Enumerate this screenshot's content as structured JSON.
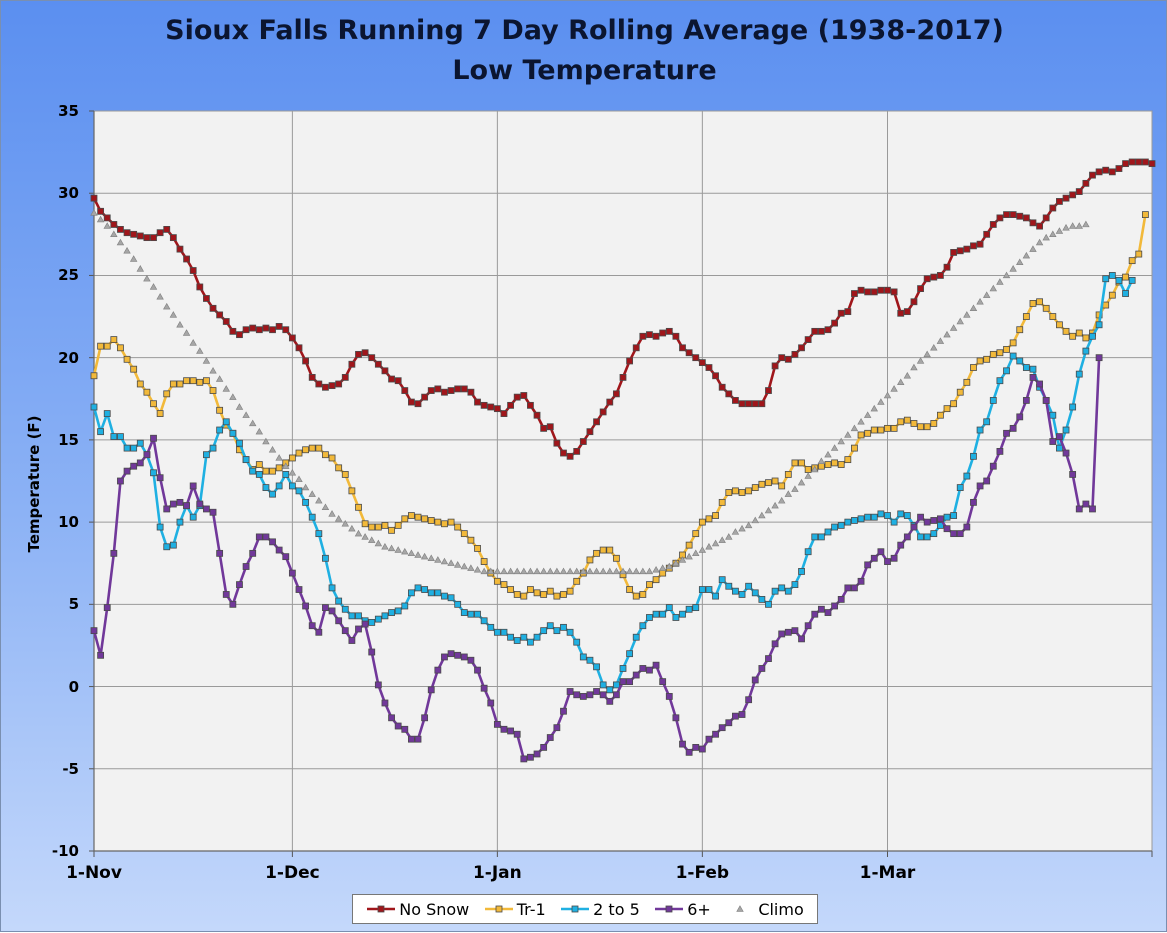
{
  "chart_data": {
    "type": "line",
    "title": "Sioux Falls Running 7 Day Rolling Average (1938-2017)",
    "subtitle": "Low Temperature",
    "xlabel": "",
    "ylabel": "Temperature (F)",
    "ylim": [
      -10,
      35
    ],
    "yticks": [
      "35",
      "30",
      "25",
      "20",
      "15",
      "10",
      "5",
      "0",
      "-5",
      "-10"
    ],
    "xtick_labels": [
      "1-Nov",
      "1-Dec",
      "1-Jan",
      "1-Feb",
      "1-Mar"
    ],
    "x_start": "1-Nov",
    "x_end": "31-Mar",
    "grid": true,
    "legend_position": "bottom",
    "series": [
      {
        "name": "No Snow",
        "color": "#a0161b",
        "marker": "square",
        "values": [
          29.7,
          28.9,
          28.5,
          28.1,
          27.8,
          27.6,
          27.5,
          27.4,
          27.3,
          27.3,
          27.6,
          27.8,
          27.3,
          26.6,
          26.0,
          25.3,
          24.3,
          23.6,
          23.0,
          22.6,
          22.2,
          21.6,
          21.4,
          21.7,
          21.8,
          21.7,
          21.8,
          21.7,
          21.9,
          21.7,
          21.2,
          20.6,
          19.8,
          18.8,
          18.4,
          18.2,
          18.3,
          18.4,
          18.8,
          19.6,
          20.2,
          20.3,
          20.0,
          19.6,
          19.2,
          18.7,
          18.6,
          18.0,
          17.3,
          17.2,
          17.6,
          18.0,
          18.1,
          17.9,
          18.0,
          18.1,
          18.1,
          17.9,
          17.3,
          17.1,
          17.0,
          16.9,
          16.6,
          17.1,
          17.6,
          17.7,
          17.1,
          16.5,
          15.7,
          15.8,
          14.8,
          14.2,
          14.0,
          14.3,
          14.9,
          15.5,
          16.1,
          16.7,
          17.3,
          17.8,
          18.8,
          19.8,
          20.6,
          21.3,
          21.4,
          21.3,
          21.5,
          21.6,
          21.3,
          20.6,
          20.3,
          20.0,
          19.7,
          19.4,
          18.9,
          18.2,
          17.8,
          17.4,
          17.2,
          17.2,
          17.2,
          17.2,
          18.0,
          19.5,
          20.0,
          19.9,
          20.2,
          20.6,
          21.1,
          21.6,
          21.6,
          21.7,
          22.1,
          22.7,
          22.8,
          23.9,
          24.1,
          24.0,
          24.0,
          24.1,
          24.1,
          24.0,
          22.7,
          22.8,
          23.4,
          24.2,
          24.8,
          24.9,
          25.0,
          25.5,
          26.4,
          26.5,
          26.6,
          26.8,
          26.9,
          27.5,
          28.1,
          28.5,
          28.7,
          28.7,
          28.6,
          28.5,
          28.2,
          28.0,
          28.5,
          29.1,
          29.5,
          29.7,
          29.9,
          30.1,
          30.6,
          31.1,
          31.3,
          31.4,
          31.3,
          31.5,
          31.8,
          31.9,
          31.9,
          31.9,
          31.8
        ]
      },
      {
        "name": "Tr-1",
        "color": "#f2b93a",
        "marker": "square",
        "values": [
          18.9,
          20.7,
          20.7,
          21.1,
          20.6,
          19.9,
          19.3,
          18.4,
          17.9,
          17.2,
          16.6,
          17.8,
          18.4,
          18.4,
          18.6,
          18.6,
          18.5,
          18.6,
          18.0,
          16.8,
          15.9,
          15.4,
          14.4,
          13.8,
          13.2,
          13.5,
          13.1,
          13.1,
          13.3,
          13.6,
          13.9,
          14.2,
          14.4,
          14.5,
          14.5,
          14.1,
          13.9,
          13.3,
          12.9,
          11.9,
          10.9,
          9.9,
          9.7,
          9.7,
          9.8,
          9.5,
          9.8,
          10.2,
          10.4,
          10.3,
          10.2,
          10.1,
          10.0,
          9.9,
          10.0,
          9.7,
          9.3,
          8.9,
          8.4,
          7.6,
          6.9,
          6.4,
          6.2,
          5.9,
          5.6,
          5.5,
          5.9,
          5.7,
          5.6,
          5.8,
          5.5,
          5.6,
          5.8,
          6.4,
          6.9,
          7.7,
          8.1,
          8.3,
          8.3,
          7.8,
          6.8,
          5.9,
          5.5,
          5.6,
          6.2,
          6.5,
          6.9,
          7.2,
          7.5,
          8.0,
          8.6,
          9.3,
          10.0,
          10.2,
          10.4,
          11.2,
          11.8,
          11.9,
          11.8,
          11.9,
          12.1,
          12.3,
          12.4,
          12.5,
          12.2,
          12.9,
          13.6,
          13.6,
          13.2,
          13.3,
          13.4,
          13.5,
          13.6,
          13.5,
          13.8,
          14.5,
          15.3,
          15.4,
          15.6,
          15.6,
          15.7,
          15.7,
          16.1,
          16.2,
          16.0,
          15.8,
          15.8,
          16.0,
          16.5,
          16.9,
          17.2,
          17.9,
          18.5,
          19.4,
          19.8,
          19.9,
          20.2,
          20.3,
          20.5,
          20.9,
          21.7,
          22.5,
          23.3,
          23.4,
          23.0,
          22.5,
          22.0,
          21.6,
          21.3,
          21.5,
          21.2,
          21.5,
          22.6,
          23.2,
          23.8,
          24.6,
          24.9,
          25.9,
          26.3,
          28.7
        ]
      },
      {
        "name": "2 to 5",
        "color": "#1fb0e2",
        "marker": "square",
        "values": [
          17.0,
          15.5,
          16.6,
          15.2,
          15.2,
          14.5,
          14.5,
          14.8,
          14.1,
          13.0,
          9.7,
          8.5,
          8.6,
          10.0,
          11.0,
          10.3,
          11.0,
          14.1,
          14.5,
          15.6,
          16.1,
          15.4,
          14.8,
          13.8,
          13.1,
          12.9,
          12.1,
          11.7,
          12.2,
          12.9,
          12.2,
          11.9,
          11.2,
          10.3,
          9.3,
          7.8,
          6.0,
          5.2,
          4.7,
          4.3,
          4.3,
          4.0,
          3.9,
          4.1,
          4.3,
          4.5,
          4.6,
          4.9,
          5.7,
          6.0,
          5.9,
          5.7,
          5.7,
          5.5,
          5.4,
          5.0,
          4.5,
          4.4,
          4.4,
          4.0,
          3.6,
          3.3,
          3.3,
          3.0,
          2.8,
          3.0,
          2.7,
          3.0,
          3.4,
          3.7,
          3.4,
          3.6,
          3.3,
          2.7,
          1.8,
          1.6,
          1.2,
          0.1,
          -0.2,
          0.1,
          1.1,
          2.0,
          3.0,
          3.7,
          4.2,
          4.4,
          4.4,
          4.8,
          4.2,
          4.4,
          4.7,
          4.8,
          5.9,
          5.9,
          5.5,
          6.5,
          6.1,
          5.8,
          5.6,
          6.1,
          5.7,
          5.3,
          5.0,
          5.8,
          6.0,
          5.8,
          6.2,
          7.0,
          8.2,
          9.1,
          9.1,
          9.4,
          9.7,
          9.8,
          10.0,
          10.1,
          10.2,
          10.3,
          10.3,
          10.5,
          10.4,
          10.0,
          10.5,
          10.4,
          9.8,
          9.1,
          9.1,
          9.3,
          9.8,
          10.3,
          10.4,
          12.1,
          12.8,
          14.0,
          15.6,
          16.1,
          17.4,
          18.6,
          19.2,
          20.1,
          19.8,
          19.4,
          19.3,
          18.2,
          17.4,
          16.5,
          14.5,
          15.6,
          17.0,
          19.0,
          20.4,
          21.3,
          22.0,
          24.8,
          25.0,
          24.7,
          23.9,
          24.7
        ]
      },
      {
        "name": "6+",
        "color": "#71389a",
        "marker": "square",
        "values": [
          3.4,
          1.9,
          4.8,
          8.1,
          12.5,
          13.1,
          13.4,
          13.6,
          14.1,
          15.1,
          12.7,
          10.8,
          11.1,
          11.2,
          11.0,
          12.2,
          11.1,
          10.8,
          10.6,
          8.1,
          5.6,
          5.0,
          6.2,
          7.3,
          8.1,
          9.1,
          9.1,
          8.8,
          8.3,
          7.9,
          6.9,
          5.9,
          4.9,
          3.7,
          3.3,
          4.8,
          4.6,
          4.0,
          3.4,
          2.8,
          3.5,
          3.8,
          2.1,
          0.1,
          -1.0,
          -1.9,
          -2.4,
          -2.6,
          -3.2,
          -3.2,
          -1.9,
          -0.2,
          1.0,
          1.8,
          2.0,
          1.9,
          1.8,
          1.6,
          1.0,
          -0.1,
          -1.0,
          -2.3,
          -2.6,
          -2.7,
          -2.9,
          -4.4,
          -4.3,
          -4.1,
          -3.7,
          -3.1,
          -2.5,
          -1.5,
          -0.3,
          -0.5,
          -0.6,
          -0.5,
          -0.3,
          -0.5,
          -0.9,
          -0.5,
          0.3,
          0.3,
          0.7,
          1.1,
          1.0,
          1.3,
          0.3,
          -0.6,
          -1.9,
          -3.5,
          -4.0,
          -3.7,
          -3.8,
          -3.2,
          -2.9,
          -2.5,
          -2.2,
          -1.8,
          -1.7,
          -0.8,
          0.4,
          1.1,
          1.7,
          2.6,
          3.2,
          3.3,
          3.4,
          2.9,
          3.7,
          4.4,
          4.7,
          4.5,
          4.9,
          5.3,
          6.0,
          6.0,
          6.4,
          7.4,
          7.8,
          8.2,
          7.6,
          7.8,
          8.6,
          9.1,
          9.7,
          10.3,
          10.0,
          10.1,
          10.2,
          9.6,
          9.3,
          9.3,
          9.7,
          11.2,
          12.2,
          12.5,
          13.4,
          14.3,
          15.4,
          15.7,
          16.4,
          17.4,
          18.8,
          18.4,
          17.4,
          14.9,
          15.2,
          14.2,
          12.9,
          10.8,
          11.1,
          10.8,
          20.0
        ]
      },
      {
        "name": "Climo",
        "color": "#8c8c8c",
        "marker": "triangle",
        "values": [
          28.8,
          28.4,
          28.0,
          27.5,
          27.0,
          26.5,
          26.0,
          25.4,
          24.8,
          24.3,
          23.7,
          23.1,
          22.6,
          22.0,
          21.5,
          20.9,
          20.4,
          19.8,
          19.2,
          18.7,
          18.1,
          17.6,
          17.0,
          16.5,
          16.0,
          15.5,
          14.9,
          14.4,
          13.9,
          13.4,
          13.0,
          12.6,
          12.1,
          11.7,
          11.3,
          10.9,
          10.5,
          10.2,
          9.9,
          9.6,
          9.3,
          9.1,
          8.9,
          8.7,
          8.5,
          8.4,
          8.3,
          8.2,
          8.1,
          8.0,
          7.9,
          7.8,
          7.7,
          7.6,
          7.5,
          7.4,
          7.3,
          7.2,
          7.1,
          7.0,
          7.0,
          7.0,
          7.0,
          7.0,
          7.0,
          7.0,
          7.0,
          7.0,
          7.0,
          7.0,
          7.0,
          7.0,
          7.0,
          7.0,
          7.0,
          7.0,
          7.0,
          7.0,
          7.0,
          7.0,
          7.0,
          7.0,
          7.0,
          7.0,
          7.0,
          7.1,
          7.2,
          7.3,
          7.5,
          7.7,
          7.9,
          8.1,
          8.3,
          8.5,
          8.7,
          8.9,
          9.1,
          9.4,
          9.6,
          9.8,
          10.1,
          10.4,
          10.7,
          11.0,
          11.3,
          11.7,
          12.0,
          12.4,
          12.8,
          13.2,
          13.7,
          14.1,
          14.5,
          14.9,
          15.3,
          15.7,
          16.1,
          16.5,
          16.9,
          17.3,
          17.7,
          18.1,
          18.5,
          18.9,
          19.4,
          19.8,
          20.2,
          20.6,
          21.0,
          21.4,
          21.8,
          22.2,
          22.6,
          23.0,
          23.4,
          23.8,
          24.2,
          24.6,
          25.0,
          25.4,
          25.8,
          26.2,
          26.6,
          27.0,
          27.3,
          27.5,
          27.7,
          27.9,
          28.0,
          28.0,
          28.1
        ]
      }
    ]
  }
}
